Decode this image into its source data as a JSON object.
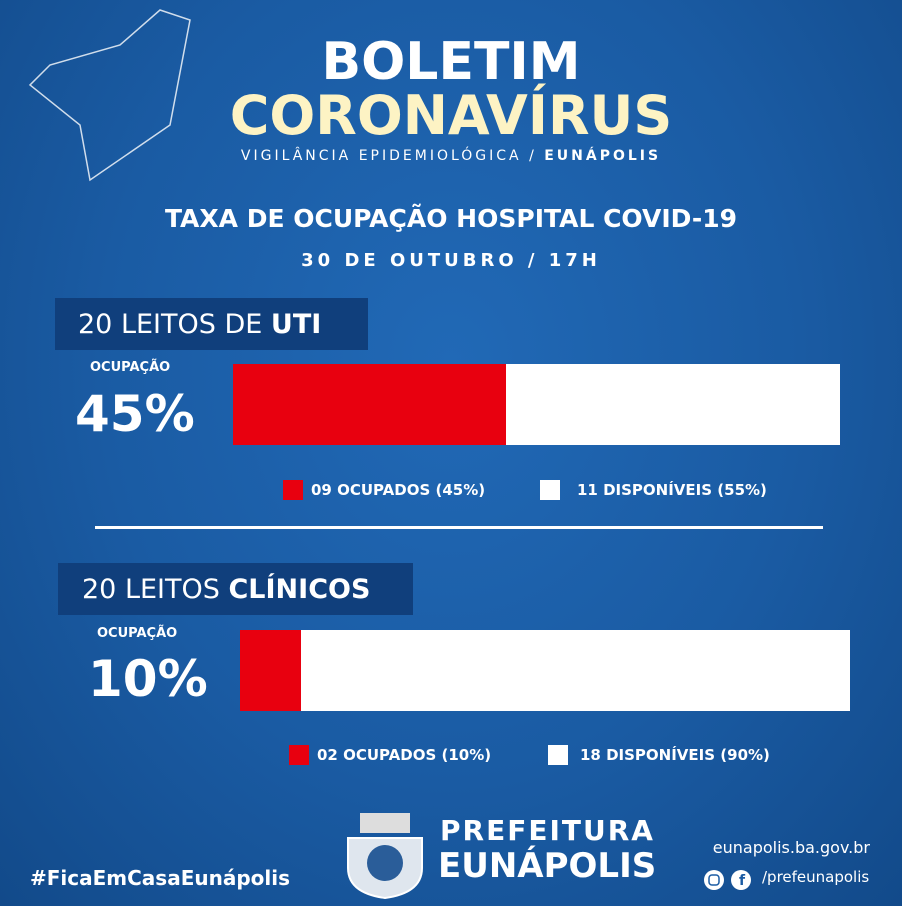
{
  "header": {
    "title_line1": "BOLETIM",
    "title_line2": "CORONAVÍRUS",
    "subtitle": "VIGILÂNCIA EPIDEMIOLÓGICA /",
    "subtitle_city": "EUNÁPOLIS"
  },
  "heading": {
    "title": "TAXA DE OCUPAÇÃO HOSPITAL COVID-19",
    "date": "30 DE OUTUBRO / 17H"
  },
  "sections": [
    {
      "label": "20 LEITOS DE",
      "label_bold": "UTI",
      "occupancy_label": "OCUPAÇÃO",
      "occupancy_text": "45%",
      "occupied_pct": 45,
      "available_pct": 55,
      "legend": [
        "09 OCUPADOS (45%)",
        "11 DISPONÍVEIS (55%)"
      ]
    },
    {
      "label": "20 LEITOS",
      "label_bold": "CLÍNICOS",
      "occupancy_label": "OCUPAÇÃO",
      "occupancy_text": "10%",
      "occupied_pct": 10,
      "available_pct": 90,
      "legend": [
        "02 OCUPADOS (10%)",
        "18 DISPONÍVEIS (90%)"
      ]
    }
  ],
  "footer": {
    "hashtag": "#FicaEmCasaEunápolis",
    "org_line1": "PREFEITURA",
    "org_line2": "EUNÁPOLIS",
    "website": "eunapolis.ba.gov.br",
    "social": "/prefeunapolis"
  }
}
